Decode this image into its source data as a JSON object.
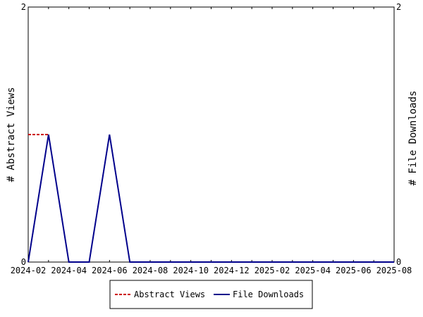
{
  "chart_data": {
    "type": "line",
    "x": [
      "2024-02",
      "2024-03",
      "2024-04",
      "2024-05",
      "2024-06",
      "2024-07",
      "2024-08",
      "2024-09",
      "2024-10",
      "2024-11",
      "2024-12",
      "2025-01",
      "2025-02",
      "2025-03",
      "2025-04",
      "2025-05",
      "2025-06",
      "2025-07",
      "2025-08"
    ],
    "x_tick_labels": [
      "2024-02",
      "2024-04",
      "2024-06",
      "2024-08",
      "2024-10",
      "2024-12",
      "2025-02",
      "2025-04",
      "2025-06",
      "2025-08"
    ],
    "series": [
      {
        "name": "Abstract Views",
        "axis": "left",
        "color": "#cc0000",
        "style": "dashed",
        "x": [
          "2024-02",
          "2024-03"
        ],
        "values": [
          1,
          1
        ]
      },
      {
        "name": "File Downloads",
        "axis": "right",
        "color": "#00008b",
        "style": "solid",
        "x": [
          "2024-02",
          "2024-03",
          "2024-04",
          "2024-05",
          "2024-06",
          "2024-07",
          "2024-08",
          "2024-09",
          "2024-10",
          "2024-11",
          "2024-12",
          "2025-01",
          "2025-02",
          "2025-03",
          "2025-04",
          "2025-05",
          "2025-06",
          "2025-07",
          "2025-08"
        ],
        "values": [
          0,
          1,
          0,
          0,
          1,
          0,
          0,
          0,
          0,
          0,
          0,
          0,
          0,
          0,
          0,
          0,
          0,
          0,
          0
        ]
      }
    ],
    "ylabel": "# Abstract Views",
    "y2label": "# File Downloads",
    "ylim": [
      0,
      2
    ],
    "y2lim": [
      0,
      2
    ],
    "y_tick_labels": [
      "0",
      "2"
    ],
    "y2_tick_labels": [
      "0",
      "2"
    ],
    "grid": false,
    "legend_position": "bottom"
  }
}
